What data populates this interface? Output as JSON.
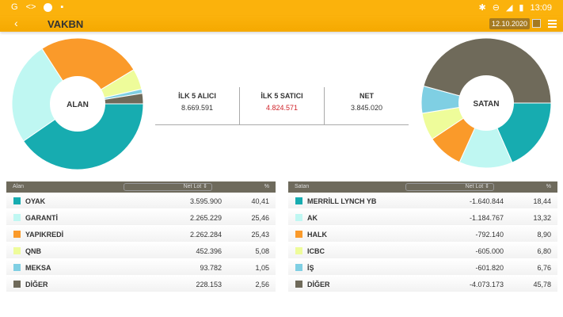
{
  "status": {
    "time": "13:09"
  },
  "header": {
    "title": "VAKBN",
    "date": "12.10.2020"
  },
  "colors": [
    "#17acb0",
    "#bff7f2",
    "#fa9a2a",
    "#eefc9a",
    "#7fcfe3",
    "#6f6a5a"
  ],
  "left_pie": {
    "label": "ALAN"
  },
  "right_pie": {
    "label": "SATAN"
  },
  "summary": [
    {
      "label": "İLK 5 ALICI",
      "value": "8.669.591"
    },
    {
      "label": "İLK 5 SATICI",
      "value": "4.824.571"
    },
    {
      "label": "NET",
      "value": "3.845.020"
    }
  ],
  "buyers": {
    "headers": {
      "name": "Alan",
      "lot": "Net Lot ⇕",
      "pct": "%"
    },
    "rows": [
      {
        "name": "OYAK",
        "lot": "3.595.900",
        "pct": "40,41",
        "p": 40.41
      },
      {
        "name": "GARANTİ",
        "lot": "2.265.229",
        "pct": "25,46",
        "p": 25.46
      },
      {
        "name": "YAPIKREDİ",
        "lot": "2.262.284",
        "pct": "25,43",
        "p": 25.43
      },
      {
        "name": "QNB",
        "lot": "452.396",
        "pct": "5,08",
        "p": 5.08
      },
      {
        "name": "MEKSA",
        "lot": "93.782",
        "pct": "1,05",
        "p": 1.05
      },
      {
        "name": "DİĞER",
        "lot": "228.153",
        "pct": "2,56",
        "p": 2.56
      }
    ]
  },
  "sellers": {
    "headers": {
      "name": "Satan",
      "lot": "Net Lot ⇕",
      "pct": "%"
    },
    "rows": [
      {
        "name": "MERRİLL LYNCH YB",
        "lot": "-1.640.844",
        "pct": "18,44",
        "p": 18.44
      },
      {
        "name": "AK",
        "lot": "-1.184.767",
        "pct": "13,32",
        "p": 13.32
      },
      {
        "name": "HALK",
        "lot": "-792.140",
        "pct": "8,90",
        "p": 8.9
      },
      {
        "name": "ICBC",
        "lot": "-605.000",
        "pct": "6,80",
        "p": 6.8
      },
      {
        "name": "İŞ",
        "lot": "-601.820",
        "pct": "6,76",
        "p": 6.76
      },
      {
        "name": "DİĞER",
        "lot": "-4.073.173",
        "pct": "45,78",
        "p": 45.78
      }
    ]
  }
}
